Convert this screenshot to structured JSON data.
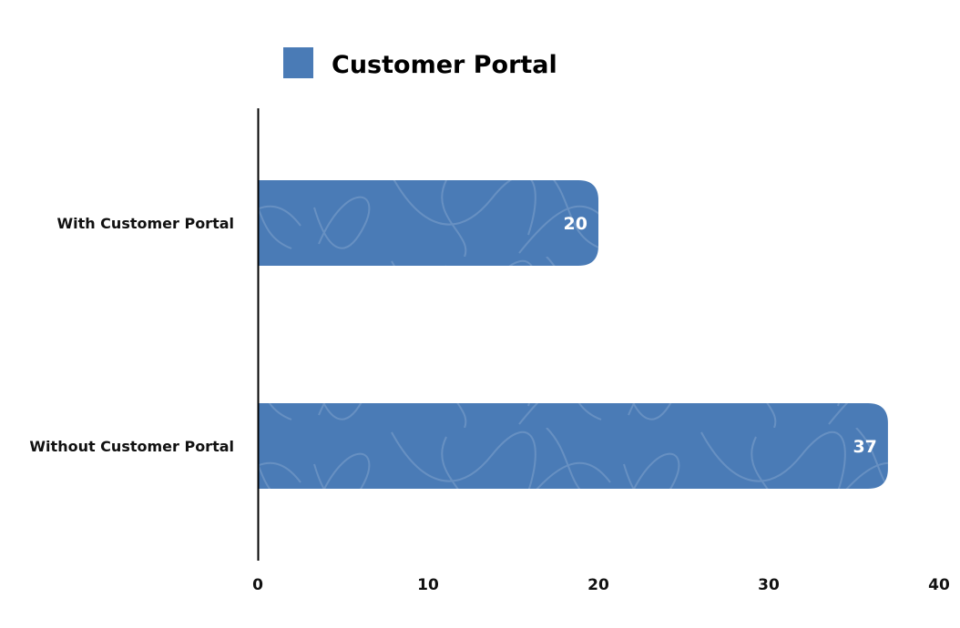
{
  "chart_data": {
    "type": "bar",
    "orientation": "horizontal",
    "categories": [
      "With Customer Portal",
      "Without Customer Portal"
    ],
    "series": [
      {
        "name": "Customer Portal",
        "values": [
          20,
          37
        ],
        "color": "#4a7bb6"
      }
    ],
    "xlim": [
      0,
      40
    ],
    "xticks": [
      0,
      10,
      20,
      30,
      40
    ],
    "tick_labels": [
      "0",
      "10",
      "20",
      "30",
      "40"
    ],
    "value_labels": [
      "20",
      "37"
    ],
    "legend": {
      "placement": "top",
      "label": "Customer Portal"
    },
    "grid": false
  }
}
